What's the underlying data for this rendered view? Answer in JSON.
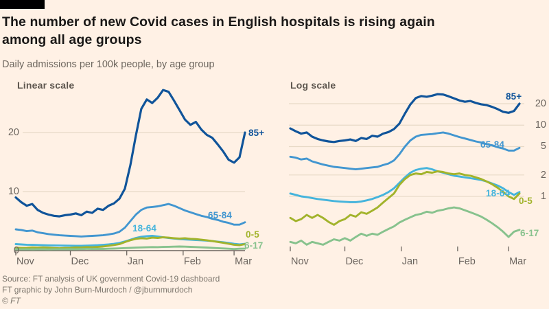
{
  "header": {
    "title_line1": "The number of new Covid cases in English hospitals is rising again",
    "title_line2": "among all age groups",
    "subtitle": "Daily admissions per 100k people, by age group"
  },
  "chart_data": {
    "type": "line",
    "x_ticks": [
      "Nov",
      "Dec",
      "Jan",
      "Feb",
      "Mar"
    ],
    "x_span_days": 126,
    "day_step": 3,
    "panels": [
      {
        "title": "Linear scale",
        "scale": "linear",
        "y_gridlines": [
          10,
          20
        ],
        "y_tick_values": [
          0,
          10,
          20
        ],
        "y_tick_labels": [
          "0",
          "10",
          "20"
        ],
        "ylim": [
          0,
          28
        ]
      },
      {
        "title": "Log scale",
        "scale": "log",
        "y_gridlines": [
          1,
          2,
          5,
          10,
          20
        ],
        "y_tick_values": [
          1,
          2,
          5,
          10,
          20
        ],
        "y_tick_labels": [
          "1",
          "2",
          "5",
          "10",
          "20"
        ],
        "ylim": [
          0.2,
          28
        ]
      }
    ],
    "series": [
      {
        "name": "85+",
        "color": "#10549a",
        "values": [
          9.0,
          8.2,
          7.6,
          7.9,
          6.9,
          6.4,
          6.1,
          5.9,
          5.8,
          6.0,
          6.1,
          6.3,
          6.0,
          6.6,
          6.4,
          7.1,
          6.9,
          7.6,
          8.0,
          8.8,
          10.5,
          14.5,
          19.5,
          24.0,
          25.6,
          25.0,
          25.9,
          27.2,
          26.9,
          25.4,
          23.8,
          22.2,
          21.3,
          21.8,
          20.5,
          19.6,
          19.1,
          18.0,
          16.8,
          15.4,
          14.9,
          15.8,
          20.0
        ]
      },
      {
        "name": "65-84",
        "color": "#4296d0",
        "values": [
          3.6,
          3.5,
          3.3,
          3.4,
          3.1,
          2.95,
          2.8,
          2.7,
          2.6,
          2.55,
          2.5,
          2.45,
          2.4,
          2.45,
          2.5,
          2.55,
          2.6,
          2.75,
          2.9,
          3.2,
          3.9,
          5.0,
          6.1,
          6.9,
          7.3,
          7.4,
          7.5,
          7.7,
          7.9,
          7.6,
          7.2,
          6.8,
          6.5,
          6.2,
          5.9,
          5.7,
          5.4,
          5.2,
          4.9,
          4.7,
          4.4,
          4.4,
          4.8
        ]
      },
      {
        "name": "18-64",
        "color": "#45b4dc",
        "values": [
          1.1,
          1.05,
          1.0,
          0.98,
          0.95,
          0.92,
          0.9,
          0.88,
          0.86,
          0.85,
          0.84,
          0.83,
          0.83,
          0.85,
          0.88,
          0.92,
          0.98,
          1.05,
          1.15,
          1.3,
          1.55,
          1.85,
          2.15,
          2.35,
          2.45,
          2.5,
          2.4,
          2.25,
          2.15,
          2.05,
          1.95,
          1.9,
          1.85,
          1.8,
          1.75,
          1.7,
          1.62,
          1.52,
          1.42,
          1.3,
          1.15,
          1.05,
          1.15
        ]
      },
      {
        "name": "0-5",
        "color": "#a2b32b",
        "values": [
          0.5,
          0.45,
          0.48,
          0.55,
          0.5,
          0.55,
          0.5,
          0.44,
          0.4,
          0.45,
          0.48,
          0.55,
          0.52,
          0.6,
          0.57,
          0.63,
          0.7,
          0.82,
          0.95,
          1.1,
          1.45,
          1.75,
          2.0,
          2.1,
          2.05,
          2.2,
          2.15,
          2.25,
          2.2,
          2.1,
          2.05,
          2.1,
          2.0,
          1.95,
          1.85,
          1.75,
          1.62,
          1.48,
          1.32,
          1.16,
          1.0,
          0.92,
          1.1
        ]
      },
      {
        "name": "6-17",
        "color": "#87c28d",
        "values": [
          0.23,
          0.22,
          0.24,
          0.21,
          0.23,
          0.22,
          0.21,
          0.23,
          0.25,
          0.24,
          0.26,
          0.24,
          0.27,
          0.3,
          0.28,
          0.3,
          0.29,
          0.32,
          0.35,
          0.38,
          0.43,
          0.47,
          0.51,
          0.55,
          0.57,
          0.61,
          0.59,
          0.63,
          0.65,
          0.68,
          0.7,
          0.68,
          0.64,
          0.6,
          0.56,
          0.52,
          0.47,
          0.42,
          0.37,
          0.32,
          0.27,
          0.32,
          0.34
        ]
      }
    ]
  },
  "footer": {
    "source": "Source: FT analysis of UK government Covid-19 dashboard",
    "credit": "FT graphic by John Burn-Murdoch / @jburnmurdoch",
    "copyright": "© FT"
  },
  "colors": {
    "background": "#fff1e5",
    "title_text": "#1a1817",
    "muted_text": "#6b645e",
    "gridline": "#e7d9c6",
    "axis": "#6b645e"
  }
}
